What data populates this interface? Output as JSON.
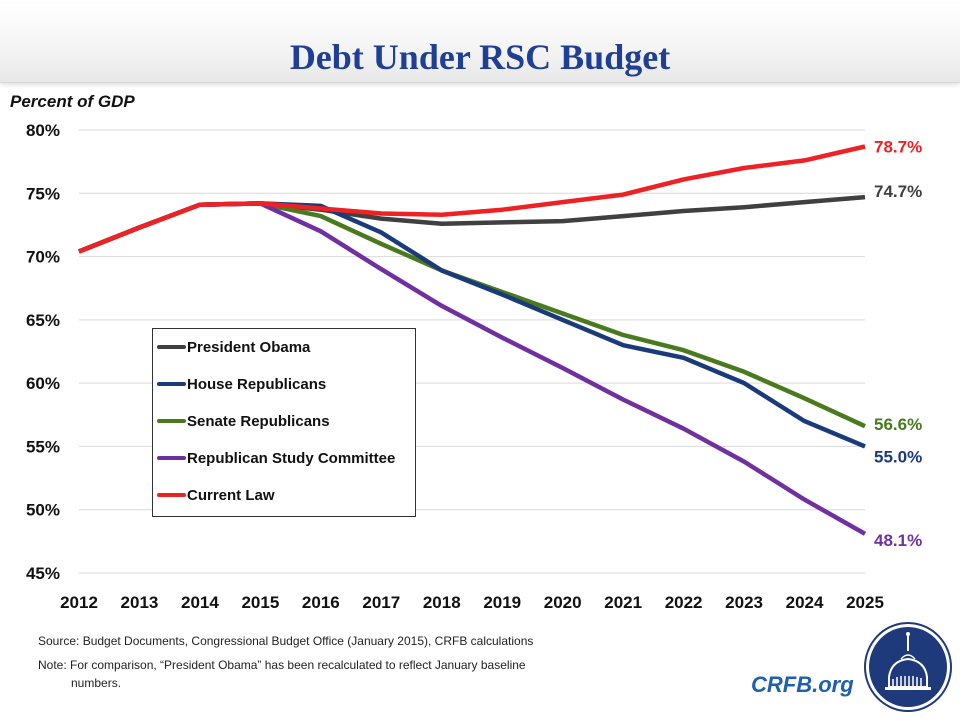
{
  "header": {
    "title": "Debt Under RSC Budget"
  },
  "chart_data": {
    "type": "line",
    "title": "Debt Under RSC Budget",
    "ylabel": "Percent of GDP",
    "xlabel": "",
    "ylim": [
      45,
      80
    ],
    "y_ticks": [
      "80%",
      "75%",
      "70%",
      "65%",
      "60%",
      "55%",
      "50%",
      "45%"
    ],
    "y_tick_values": [
      80,
      75,
      70,
      65,
      60,
      55,
      50,
      45
    ],
    "grid": true,
    "legend_position": "left-middle",
    "categories": [
      "2012",
      "2013",
      "2014",
      "2015",
      "2016",
      "2017",
      "2018",
      "2019",
      "2020",
      "2021",
      "2022",
      "2023",
      "2024",
      "2025"
    ],
    "series": [
      {
        "name": "President Obama",
        "color": "#404040",
        "end_label": "74.7%",
        "values": [
          70.4,
          72.3,
          74.1,
          74.2,
          73.7,
          73.0,
          72.6,
          72.7,
          72.8,
          73.2,
          73.6,
          73.9,
          74.3,
          74.7
        ]
      },
      {
        "name": "House Republicans",
        "color": "#1b3a7a",
        "end_label": "55.0%",
        "values": [
          70.4,
          72.3,
          74.1,
          74.2,
          74.0,
          71.9,
          68.9,
          67.0,
          65.0,
          63.0,
          62.0,
          60.0,
          57.0,
          55.0
        ]
      },
      {
        "name": "Senate Republicans",
        "color": "#4a7a1e",
        "end_label": "56.6%",
        "values": [
          70.4,
          72.3,
          74.1,
          74.2,
          73.2,
          71.0,
          68.9,
          67.2,
          65.5,
          63.8,
          62.6,
          60.9,
          58.8,
          56.6
        ]
      },
      {
        "name": "Republican Study Committee",
        "color": "#7030a0",
        "end_label": "48.1%",
        "values": [
          70.4,
          72.3,
          74.1,
          74.2,
          72.0,
          69.0,
          66.1,
          63.6,
          61.2,
          58.7,
          56.4,
          53.8,
          50.8,
          48.1
        ]
      },
      {
        "name": "Current Law",
        "color": "#ee2224",
        "end_label": "78.7%",
        "values": [
          70.4,
          72.3,
          74.1,
          74.2,
          73.8,
          73.4,
          73.3,
          73.7,
          74.3,
          74.9,
          76.1,
          77.0,
          77.6,
          78.7
        ]
      }
    ]
  },
  "footer": {
    "source": "Source: Budget Documents, Congressional Budget Office (January 2015), CRFB calculations",
    "note_line1": "Note: For comparison, “President Obama” has been recalculated to reflect January baseline",
    "note_line2": "numbers.",
    "brand": "CRFB.org",
    "logo_icon": "capitol-dome-seal-icon"
  }
}
